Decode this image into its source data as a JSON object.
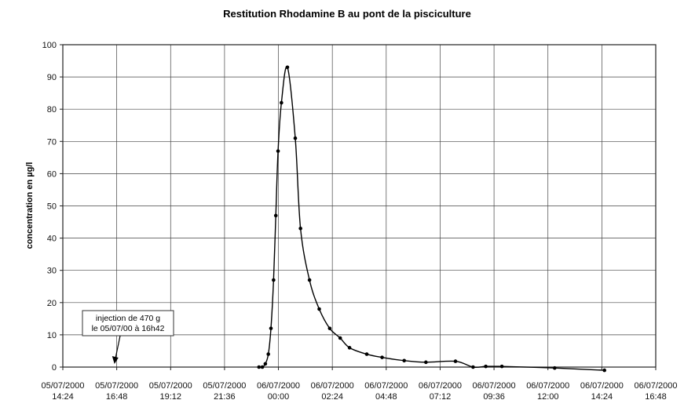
{
  "chart_data": {
    "type": "line",
    "title": "Restitution Rhodamine B au pont de la pisciculture",
    "xlabel": "",
    "ylabel": "concentration en µg/l",
    "ylim": [
      0,
      100
    ],
    "yticks": [
      0,
      10,
      20,
      30,
      40,
      50,
      60,
      70,
      80,
      90,
      100
    ],
    "xlim": [
      "05/07/2000 14:24",
      "06/07/2000 16:48"
    ],
    "xticks": [
      {
        "date": "05/07/2000",
        "time": "14:24"
      },
      {
        "date": "05/07/2000",
        "time": "16:48"
      },
      {
        "date": "05/07/2000",
        "time": "19:12"
      },
      {
        "date": "05/07/2000",
        "time": "21:36"
      },
      {
        "date": "06/07/2000",
        "time": "00:00"
      },
      {
        "date": "06/07/2000",
        "time": "02:24"
      },
      {
        "date": "06/07/2000",
        "time": "04:48"
      },
      {
        "date": "06/07/2000",
        "time": "07:12"
      },
      {
        "date": "06/07/2000",
        "time": "09:36"
      },
      {
        "date": "06/07/2000",
        "time": "12:00"
      },
      {
        "date": "06/07/2000",
        "time": "14:24"
      },
      {
        "date": "06/07/2000",
        "time": "16:48"
      }
    ],
    "grid": true,
    "legend": "none",
    "series": [
      {
        "color": "#000000",
        "x": [
          "05/07/2000 23:08",
          "05/07/2000 23:17",
          "05/07/2000 23:25",
          "05/07/2000 23:33",
          "05/07/2000 23:40",
          "05/07/2000 23:47",
          "05/07/2000 23:53",
          "05/07/2000 23:59",
          "06/07/2000 00:08",
          "06/07/2000 00:24",
          "06/07/2000 00:45",
          "06/07/2000 00:59",
          "06/07/2000 01:23",
          "06/07/2000 01:49",
          "06/07/2000 02:17",
          "06/07/2000 02:45",
          "06/07/2000 03:10",
          "06/07/2000 03:56",
          "06/07/2000 04:37",
          "06/07/2000 05:36",
          "06/07/2000 06:34",
          "06/07/2000 07:53",
          "06/07/2000 08:40",
          "06/07/2000 09:14",
          "06/07/2000 09:57",
          "06/07/2000 12:18",
          "06/07/2000 14:31"
        ],
        "values": [
          0,
          0,
          1,
          4,
          12,
          27,
          47,
          67,
          82,
          93,
          71,
          43,
          27,
          18,
          12,
          9,
          6,
          4,
          3,
          2,
          1.5,
          1.8,
          0,
          0.2,
          0.2,
          -0.3,
          -1
        ]
      }
    ],
    "annotations": [
      {
        "lines": [
          "injection de 470 g",
          "le 05/07/00 à  16h42"
        ],
        "points_to": "05/07/2000 16:42"
      }
    ]
  }
}
